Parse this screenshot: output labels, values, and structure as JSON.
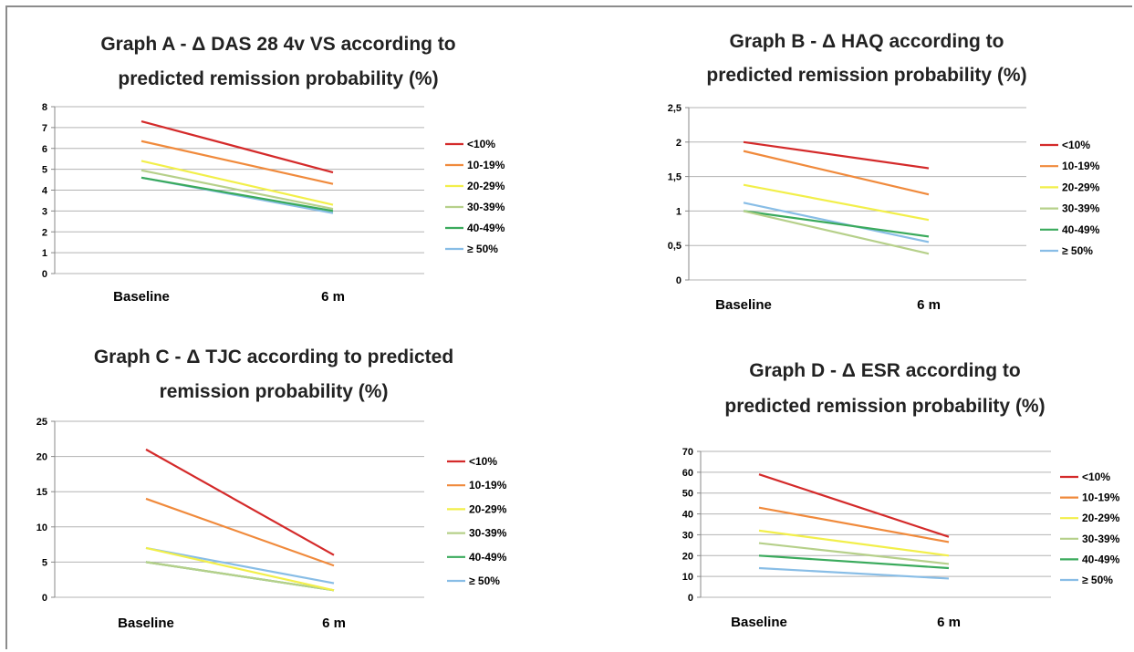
{
  "chart_data": [
    {
      "type": "line",
      "title": "Graph A - Δ DAS 28 4v VS according to predicted remission probability (%)",
      "title_lines": [
        "Graph A - Δ DAS 28 4v VS according to",
        "predicted remission probability (%)"
      ],
      "categories": [
        "Baseline",
        "6 m"
      ],
      "ylim": [
        0,
        8
      ],
      "yticks": [
        "0",
        "1",
        "2",
        "3",
        "4",
        "5",
        "6",
        "7",
        "8"
      ],
      "grid": true,
      "legend_position": "right",
      "series": [
        {
          "name": "<10%",
          "color": "#d42a2a",
          "values": [
            7.3,
            4.85
          ]
        },
        {
          "name": "10-19%",
          "color": "#f08a3c",
          "values": [
            6.35,
            4.3
          ]
        },
        {
          "name": "20-29%",
          "color": "#f2ef4a",
          "values": [
            5.4,
            3.3
          ]
        },
        {
          "name": "30-39%",
          "color": "#b6d08a",
          "values": [
            4.95,
            3.1
          ]
        },
        {
          "name": "40-49%",
          "color": "#3aaa5c",
          "values": [
            4.6,
            3.0
          ]
        },
        {
          "name": "≥ 50%",
          "color": "#88bde6",
          "values": [
            4.6,
            2.9
          ]
        }
      ]
    },
    {
      "type": "line",
      "title": "Graph B - Δ HAQ according to predicted remission probability (%)",
      "title_lines": [
        "Graph B - Δ HAQ according to",
        "predicted remission probability (%)"
      ],
      "categories": [
        "Baseline",
        "6 m"
      ],
      "ylim": [
        0,
        2.5
      ],
      "yticks": [
        "0",
        "0,5",
        "1",
        "1,5",
        "2",
        "2,5"
      ],
      "grid": true,
      "legend_position": "right",
      "series": [
        {
          "name": "<10%",
          "color": "#d42a2a",
          "values": [
            2.0,
            1.62
          ]
        },
        {
          "name": "10-19%",
          "color": "#f08a3c",
          "values": [
            1.87,
            1.24
          ]
        },
        {
          "name": "20-29%",
          "color": "#f2ef4a",
          "values": [
            1.38,
            0.87
          ]
        },
        {
          "name": "30-39%",
          "color": "#b6d08a",
          "values": [
            1.0,
            0.38
          ]
        },
        {
          "name": "40-49%",
          "color": "#3aaa5c",
          "values": [
            1.0,
            0.63
          ]
        },
        {
          "name": "≥ 50%",
          "color": "#88bde6",
          "values": [
            1.12,
            0.55
          ]
        }
      ]
    },
    {
      "type": "line",
      "title": "Graph C - Δ TJC according to predicted remission probability (%)",
      "title_lines": [
        "Graph C - Δ TJC according to predicted",
        "remission probability (%)"
      ],
      "categories": [
        "Baseline",
        "6 m"
      ],
      "ylim": [
        0,
        25
      ],
      "yticks": [
        "0",
        "5",
        "10",
        "15",
        "20",
        "25"
      ],
      "grid": true,
      "legend_position": "right",
      "series": [
        {
          "name": "<10%",
          "color": "#d42a2a",
          "values": [
            21,
            6
          ]
        },
        {
          "name": "10-19%",
          "color": "#f08a3c",
          "values": [
            14,
            4.5
          ]
        },
        {
          "name": "20-29%",
          "color": "#f2ef4a",
          "values": [
            7,
            1
          ]
        },
        {
          "name": "30-39%",
          "color": "#b6d08a",
          "values": [
            5,
            1
          ]
        },
        {
          "name": "40-49%",
          "color": "#3aaa5c",
          "values": [
            5,
            1
          ]
        },
        {
          "name": "≥ 50%",
          "color": "#88bde6",
          "values": [
            7,
            2
          ]
        }
      ]
    },
    {
      "type": "line",
      "title": "Graph D - Δ ESR according to predicted remission probability (%)",
      "title_lines": [
        "Graph D - Δ ESR according to",
        "predicted remission probability (%)"
      ],
      "categories": [
        "Baseline",
        "6 m"
      ],
      "ylim": [
        0,
        70
      ],
      "yticks": [
        "0",
        "10",
        "20",
        "30",
        "40",
        "50",
        "60",
        "70"
      ],
      "grid": true,
      "legend_position": "right",
      "series": [
        {
          "name": "<10%",
          "color": "#d42a2a",
          "values": [
            59,
            29
          ]
        },
        {
          "name": "10-19%",
          "color": "#f08a3c",
          "values": [
            43,
            26.5
          ]
        },
        {
          "name": "20-29%",
          "color": "#f2ef4a",
          "values": [
            32,
            20
          ]
        },
        {
          "name": "30-39%",
          "color": "#b6d08a",
          "values": [
            26,
            16
          ]
        },
        {
          "name": "40-49%",
          "color": "#3aaa5c",
          "values": [
            20,
            14
          ]
        },
        {
          "name": "≥ 50%",
          "color": "#88bde6",
          "values": [
            14,
            9
          ]
        }
      ]
    }
  ]
}
